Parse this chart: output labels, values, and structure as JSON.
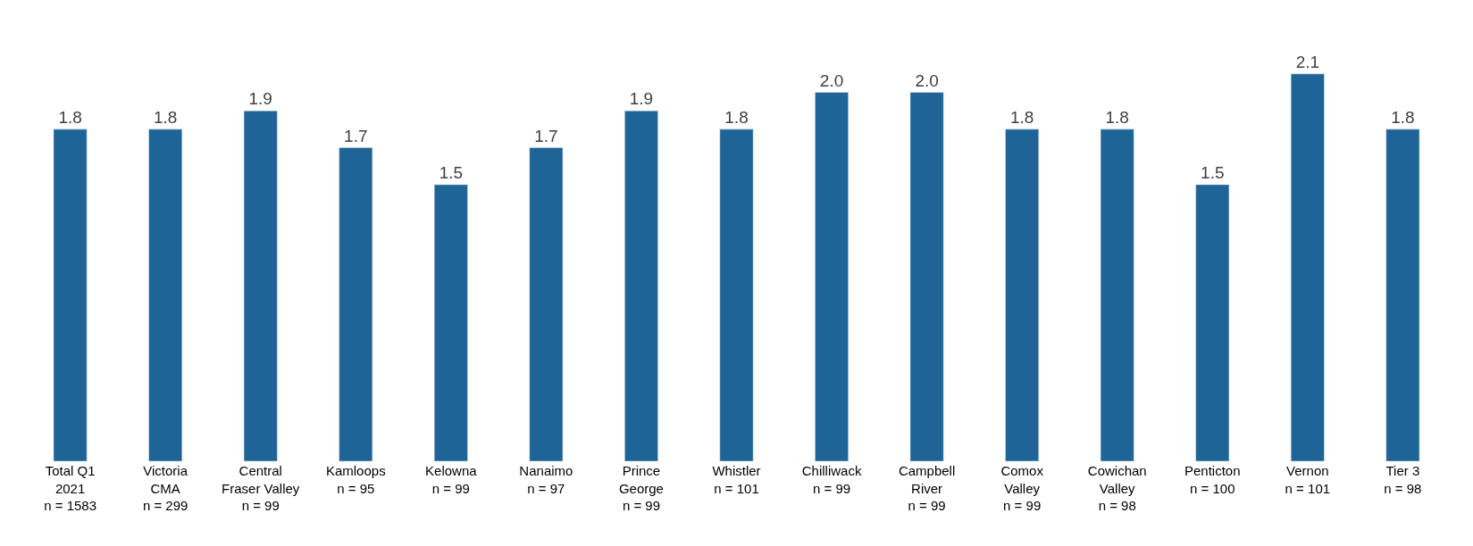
{
  "chart_data": {
    "type": "bar",
    "categories": [
      "Total Q1\n2021\nn = 1583",
      "Victoria\nCMA\nn = 299",
      "Central\nFraser Valley\nn = 99",
      "Kamloops\nn = 95",
      "Kelowna\nn = 99",
      "Nanaimo\nn = 97",
      "Prince\nGeorge\nn = 99",
      "Whistler\nn = 101",
      "Chilliwack\nn = 99",
      "Campbell\nRiver\nn = 99",
      "Comox\nValley\nn = 99",
      "Cowichan\nValley\nn = 98",
      "Penticton\nn = 100",
      "Vernon\nn = 101",
      "Tier 3\nn = 98"
    ],
    "values": [
      1.8,
      1.8,
      1.9,
      1.7,
      1.5,
      1.7,
      1.9,
      1.8,
      2.0,
      2.0,
      1.8,
      1.8,
      1.5,
      2.1,
      1.8
    ],
    "value_labels": [
      "1.8",
      "1.8",
      "1.9",
      "1.7",
      "1.5",
      "1.7",
      "1.9",
      "1.8",
      "2.0",
      "2.0",
      "1.8",
      "1.8",
      "1.5",
      "2.1",
      "1.8"
    ],
    "color": "#1f6496",
    "legend": false
  }
}
